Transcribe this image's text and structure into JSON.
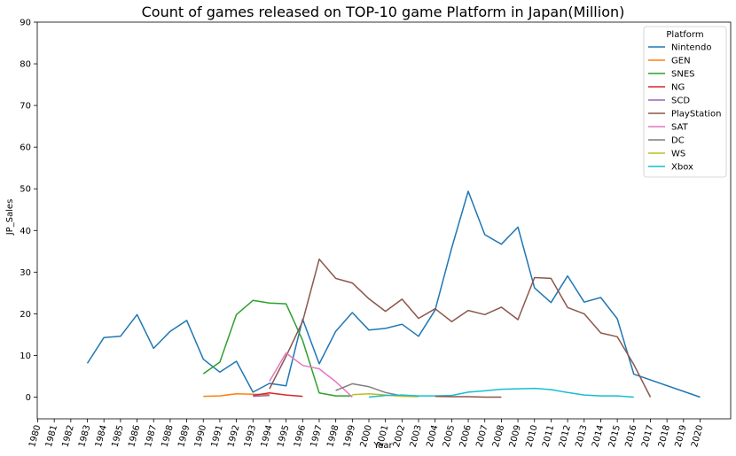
{
  "chart_data": {
    "type": "line",
    "title": "Count of games released on TOP-10 game Platform in Japan(Million)",
    "xlabel": "Year",
    "ylabel": "JP_Sales",
    "xlim": [
      1980,
      2020
    ],
    "ylim": [
      0,
      90
    ],
    "yticks": [
      0,
      10,
      20,
      30,
      40,
      50,
      60,
      70,
      80,
      90
    ],
    "xticks": [
      1980,
      1981,
      1982,
      1983,
      1984,
      1985,
      1986,
      1987,
      1988,
      1989,
      1990,
      1991,
      1992,
      1993,
      1994,
      1995,
      1996,
      1997,
      1998,
      1999,
      2000,
      2001,
      2002,
      2003,
      2004,
      2005,
      2006,
      2007,
      2008,
      2009,
      2010,
      2011,
      2012,
      2013,
      2014,
      2015,
      2016,
      2017,
      2018,
      2019,
      2020
    ],
    "grid": false,
    "legend": {
      "title": "Platform",
      "position": "top-right"
    },
    "series": [
      {
        "name": "Nintendo",
        "color": "#1f77b4",
        "x": [
          1983,
          1984,
          1985,
          1986,
          1987,
          1988,
          1989,
          1990,
          1991,
          1992,
          1993,
          1994,
          1995,
          1996,
          1997,
          1998,
          1999,
          2000,
          2001,
          2002,
          2003,
          2004,
          2005,
          2006,
          2007,
          2008,
          2009,
          2010,
          2011,
          2012,
          2013,
          2014,
          2015,
          2016,
          2020
        ],
        "y": [
          8.1,
          14.3,
          14.6,
          19.8,
          11.7,
          15.8,
          18.4,
          9.1,
          6.0,
          8.6,
          1.2,
          3.3,
          2.7,
          18.7,
          8.0,
          15.8,
          20.3,
          16.1,
          16.5,
          17.5,
          14.6,
          20.9,
          35.8,
          49.4,
          39.0,
          36.7,
          40.8,
          26.2,
          22.7,
          29.1,
          22.8,
          23.9,
          18.8,
          5.5,
          0.0
        ]
      },
      {
        "name": "GEN",
        "color": "#ff7f0e",
        "x": [
          1990,
          1991,
          1992,
          1993,
          1994
        ],
        "y": [
          0.2,
          0.3,
          0.8,
          0.7,
          0.6
        ]
      },
      {
        "name": "SNES",
        "color": "#2ca02c",
        "x": [
          1990,
          1991,
          1992,
          1993,
          1994,
          1995,
          1996,
          1997,
          1998,
          1999
        ],
        "y": [
          5.6,
          8.4,
          19.8,
          23.2,
          22.6,
          22.4,
          13.6,
          1.0,
          0.3,
          0.3
        ]
      },
      {
        "name": "NG",
        "color": "#d62728",
        "x": [
          1993,
          1994,
          1995,
          1996
        ],
        "y": [
          0.4,
          1.0,
          0.5,
          0.2
        ]
      },
      {
        "name": "SCD",
        "color": "#9467bd",
        "x": [
          1993,
          1994
        ],
        "y": [
          0.2,
          0.4
        ]
      },
      {
        "name": "PlayStation",
        "color": "#8c564b",
        "x": [
          1994,
          1995,
          1996,
          1997,
          1998,
          1999,
          2000,
          2001,
          2002,
          2003,
          2004,
          2005,
          2006,
          2007,
          2008,
          2009,
          2010,
          2011,
          2012,
          2013,
          2014,
          2015,
          2016,
          2017
        ],
        "y": [
          2.0,
          9.8,
          18.2,
          33.1,
          28.5,
          27.4,
          23.6,
          20.6,
          23.5,
          18.9,
          21.2,
          18.1,
          20.8,
          19.8,
          21.6,
          18.6,
          28.7,
          28.5,
          21.5,
          20.0,
          15.4,
          14.5,
          7.8,
          0.0
        ]
      },
      {
        "name": "SAT",
        "color": "#e377c2",
        "x": [
          1994,
          1995,
          1996,
          1997,
          1998,
          1999
        ],
        "y": [
          3.8,
          10.6,
          7.6,
          6.8,
          3.7,
          0.0
        ]
      },
      {
        "name": "DC",
        "color": "#7f7f7f",
        "x": [
          1998,
          1999,
          2000,
          2001,
          2002
        ],
        "y": [
          1.6,
          3.2,
          2.5,
          1.1,
          0.3
        ]
      },
      {
        "name": "WS",
        "color": "#bcbd22",
        "x": [
          1999,
          2000,
          2001,
          2002,
          2003
        ],
        "y": [
          0.6,
          0.8,
          0.5,
          0.2,
          0.1
        ]
      },
      {
        "name": "Xbox",
        "color": "#17becf",
        "x": [
          2000,
          2001,
          2002,
          2003,
          2004,
          2005,
          2006,
          2007,
          2008,
          2009,
          2010,
          2011,
          2012,
          2013,
          2014,
          2015,
          2016
        ],
        "y": [
          0.0,
          0.4,
          0.5,
          0.3,
          0.3,
          0.4,
          1.2,
          1.5,
          1.9,
          2.0,
          2.1,
          1.8,
          1.1,
          0.5,
          0.3,
          0.3,
          0.0
        ]
      },
      {
        "name": "",
        "color": "#8c564b",
        "x": [
          2004,
          2005,
          2006,
          2007,
          2008
        ],
        "y": [
          0.2,
          0.1,
          0.1,
          0.0,
          0.0
        ]
      }
    ]
  }
}
